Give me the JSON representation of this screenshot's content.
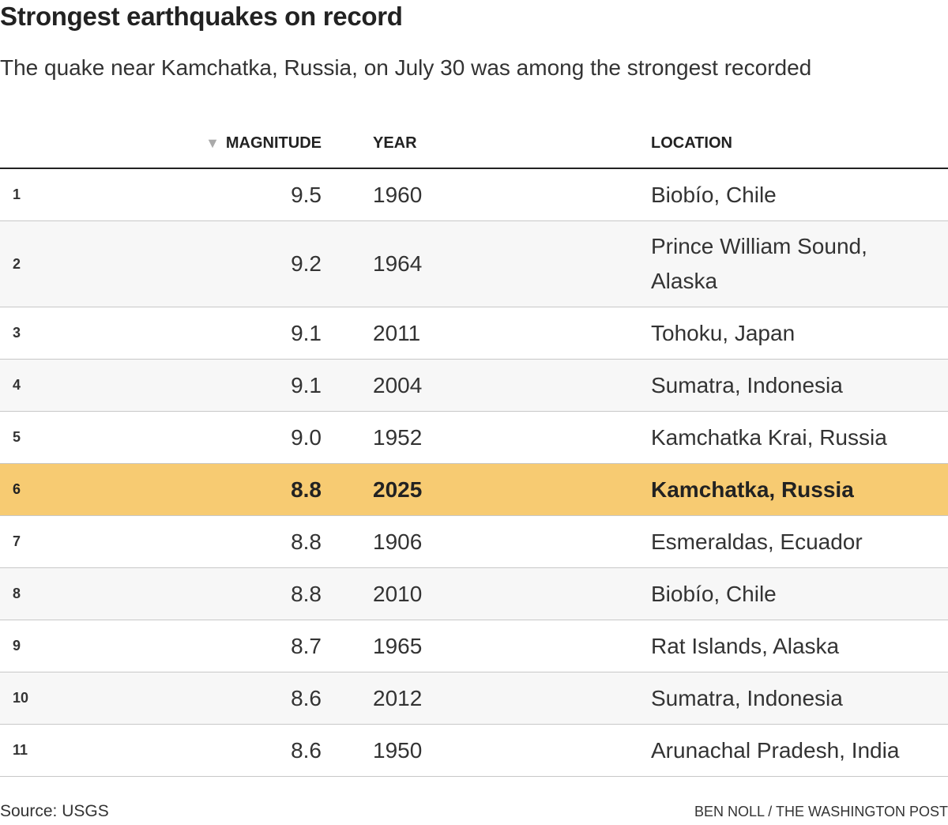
{
  "header": {
    "title": "Strongest earthquakes on record",
    "subtitle": "The quake near Kamchatka, Russia, on July 30 was among the strongest recorded"
  },
  "table": {
    "columns": [
      "MAGNITUDE",
      "YEAR",
      "LOCATION"
    ],
    "rows": [
      [
        "1",
        "9.5",
        "1960",
        "Biobío, Chile"
      ],
      [
        "2",
        "9.2",
        "1964",
        "Prince William Sound, Alaska"
      ],
      [
        "3",
        "9.1",
        "2011",
        "Tohoku, Japan"
      ],
      [
        "4",
        "9.1",
        "2004",
        "Sumatra, Indonesia"
      ],
      [
        "5",
        "9.0",
        "1952",
        "Kamchatka Krai, Russia"
      ],
      [
        "6",
        "8.8",
        "2025",
        "Kamchatka, Russia"
      ],
      [
        "7",
        "8.8",
        "1906",
        "Esmeraldas, Ecuador"
      ],
      [
        "8",
        "8.8",
        "2010",
        "Biobío, Chile"
      ],
      [
        "9",
        "8.7",
        "1965",
        "Rat Islands, Alaska"
      ],
      [
        "10",
        "8.6",
        "2012",
        "Sumatra, Indonesia"
      ],
      [
        "11",
        "8.6",
        "1950",
        "Arunachal Pradesh, India"
      ]
    ],
    "highlight": {
      "row": 5,
      "color": "#f7cb72"
    }
  },
  "footer": {
    "source": "Source: USGS",
    "credit": "BEN NOLL / THE WASHINGTON POST"
  }
}
